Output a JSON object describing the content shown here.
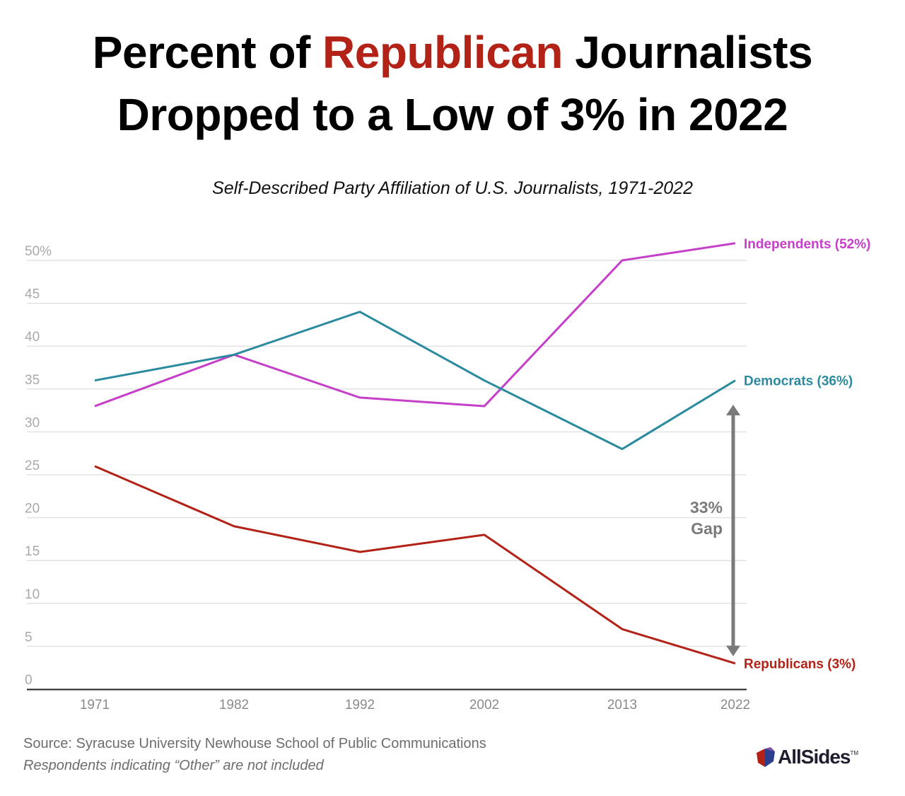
{
  "headline": {
    "line1_pre": "Percent of ",
    "line1_accent": "Republican",
    "line1_post": " Journalists",
    "line2": "Dropped to a Low of 3% in 2022"
  },
  "chart_data": {
    "type": "line",
    "subtitle": "Self-Described Party Affiliation of U.S. Journalists, 1971-2022",
    "x": [
      "1971",
      "1982",
      "1992",
      "2002",
      "2013",
      "2022"
    ],
    "ylim": [
      0,
      50
    ],
    "yticks": [
      "0",
      "5",
      "10",
      "15",
      "20",
      "25",
      "30",
      "35",
      "40",
      "45",
      "50%"
    ],
    "grid": true,
    "series": [
      {
        "key": "independents",
        "label": "Independents (52%)",
        "color": "#c53fc9",
        "values": [
          33,
          39,
          34,
          33,
          50,
          52
        ]
      },
      {
        "key": "democrats",
        "label": "Democrats (36%)",
        "color": "#2a8a9e",
        "values": [
          36,
          39,
          44,
          36,
          28,
          36
        ]
      },
      {
        "key": "republicans",
        "label": "Republicans (3%)",
        "color": "#b22216",
        "values": [
          26,
          19,
          16,
          18,
          7,
          3
        ]
      }
    ],
    "gap_annotation": {
      "line1": "33%",
      "line2": "Gap",
      "from": 4,
      "to": 33,
      "color": "#7a7a7a"
    }
  },
  "source": "Source: Syracuse University Newhouse School of Public Communications",
  "note": "Respondents indicating “Other” are not included",
  "logo": {
    "text": "AllSides",
    "tm": "TM",
    "colors": [
      "#b22216",
      "#2d3e8c",
      "#7a4ea3"
    ]
  }
}
